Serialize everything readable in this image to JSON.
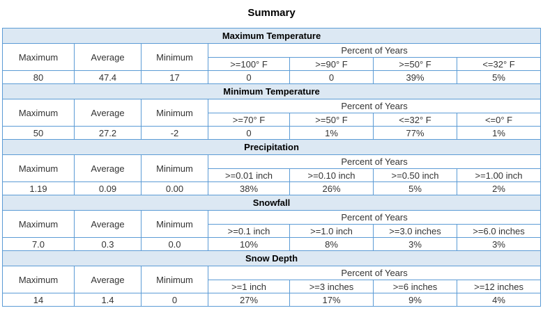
{
  "page": {
    "title": "Summary"
  },
  "labels": {
    "maximum": "Maximum",
    "average": "Average",
    "minimum": "Minimum",
    "percent_of_years": "Percent of Years"
  },
  "sections": [
    {
      "title": "Maximum Temperature",
      "thresholds": [
        ">=100° F",
        ">=90° F",
        ">=50° F",
        "<=32° F"
      ],
      "values": {
        "maximum": "80",
        "average": "47.4",
        "minimum": "17",
        "percents": [
          "0",
          "0",
          "39%",
          "5%"
        ]
      }
    },
    {
      "title": "Minimum Temperature",
      "thresholds": [
        ">=70° F",
        ">=50° F",
        "<=32° F",
        "<=0° F"
      ],
      "values": {
        "maximum": "50",
        "average": "27.2",
        "minimum": "-2",
        "percents": [
          "0",
          "1%",
          "77%",
          "1%"
        ]
      }
    },
    {
      "title": "Precipitation",
      "thresholds": [
        ">=0.01 inch",
        ">=0.10 inch",
        ">=0.50 inch",
        ">=1.00 inch"
      ],
      "values": {
        "maximum": "1.19",
        "average": "0.09",
        "minimum": "0.00",
        "percents": [
          "38%",
          "26%",
          "5%",
          "2%"
        ]
      }
    },
    {
      "title": "Snowfall",
      "thresholds": [
        ">=0.1 inch",
        ">=1.0 inch",
        ">=3.0 inches",
        ">=6.0 inches"
      ],
      "values": {
        "maximum": "7.0",
        "average": "0.3",
        "minimum": "0.0",
        "percents": [
          "10%",
          "8%",
          "3%",
          "3%"
        ]
      }
    },
    {
      "title": "Snow Depth",
      "thresholds": [
        ">=1 inch",
        ">=3 inches",
        ">=6 inches",
        ">=12 inches"
      ],
      "values": {
        "maximum": "14",
        "average": "1.4",
        "minimum": "0",
        "percents": [
          "27%",
          "17%",
          "9%",
          "4%"
        ]
      }
    }
  ]
}
